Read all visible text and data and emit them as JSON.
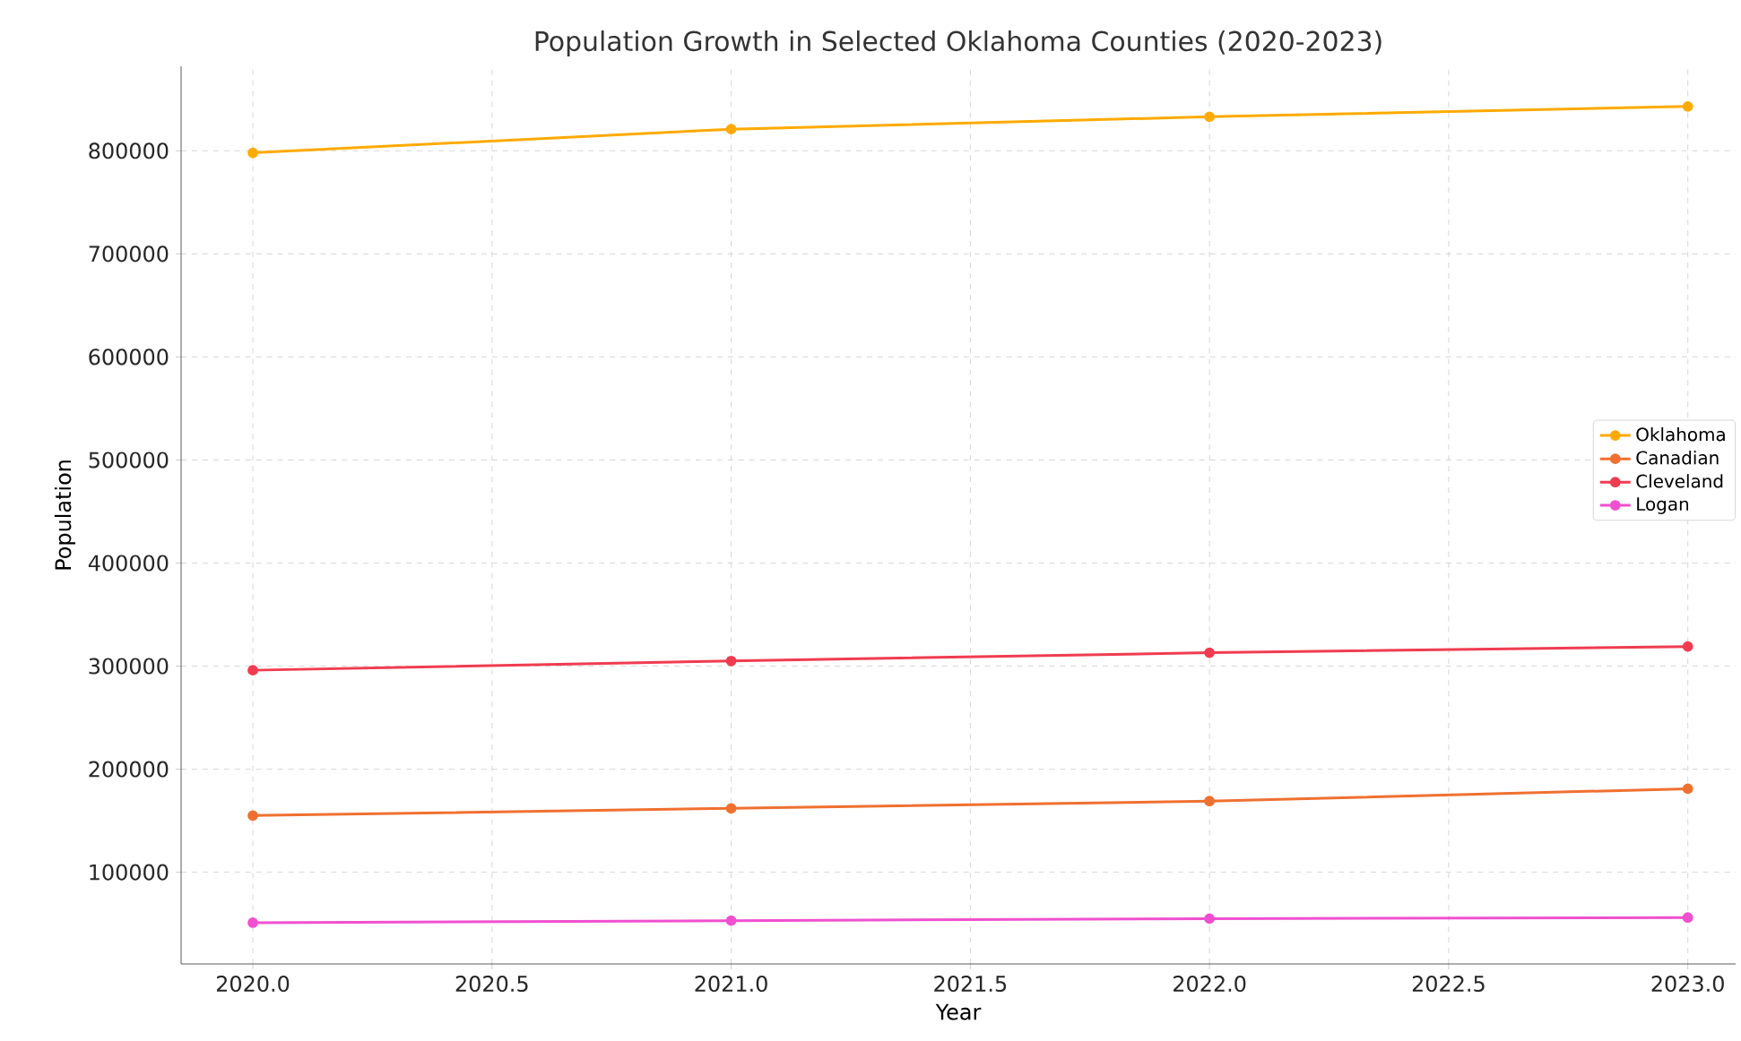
{
  "chart_data": {
    "type": "line",
    "title": "Population Growth in Selected Oklahoma Counties (2020-2023)",
    "xlabel": "Year",
    "ylabel": "Population",
    "x": [
      2020,
      2021,
      2022,
      2023
    ],
    "series": [
      {
        "name": "Oklahoma",
        "color": "#ffaa00",
        "values": [
          798000,
          821000,
          833000,
          843000
        ]
      },
      {
        "name": "Canadian",
        "color": "#f07030",
        "values": [
          155000,
          162000,
          169000,
          181000
        ]
      },
      {
        "name": "Cleveland",
        "color": "#f03c50",
        "values": [
          296000,
          305000,
          313000,
          319000
        ]
      },
      {
        "name": "Logan",
        "color": "#f050d0",
        "values": [
          51000,
          53000,
          55000,
          56000
        ]
      }
    ],
    "xlim": [
      2019.85,
      2023.1
    ],
    "ylim": [
      11000,
      882000
    ],
    "xticks": [
      {
        "value": 2020,
        "label": "2020.0"
      },
      {
        "value": 2020.5,
        "label": "2020.5"
      },
      {
        "value": 2021,
        "label": "2021.0"
      },
      {
        "value": 2021.5,
        "label": "2021.5"
      },
      {
        "value": 2022,
        "label": "2022.0"
      },
      {
        "value": 2022.5,
        "label": "2022.5"
      },
      {
        "value": 2023,
        "label": "2023.0"
      }
    ],
    "yticks": [
      100000,
      200000,
      300000,
      400000,
      500000,
      600000,
      700000,
      800000
    ],
    "grid": true,
    "legend": "right",
    "marker": "circle",
    "line_style": "solid"
  }
}
